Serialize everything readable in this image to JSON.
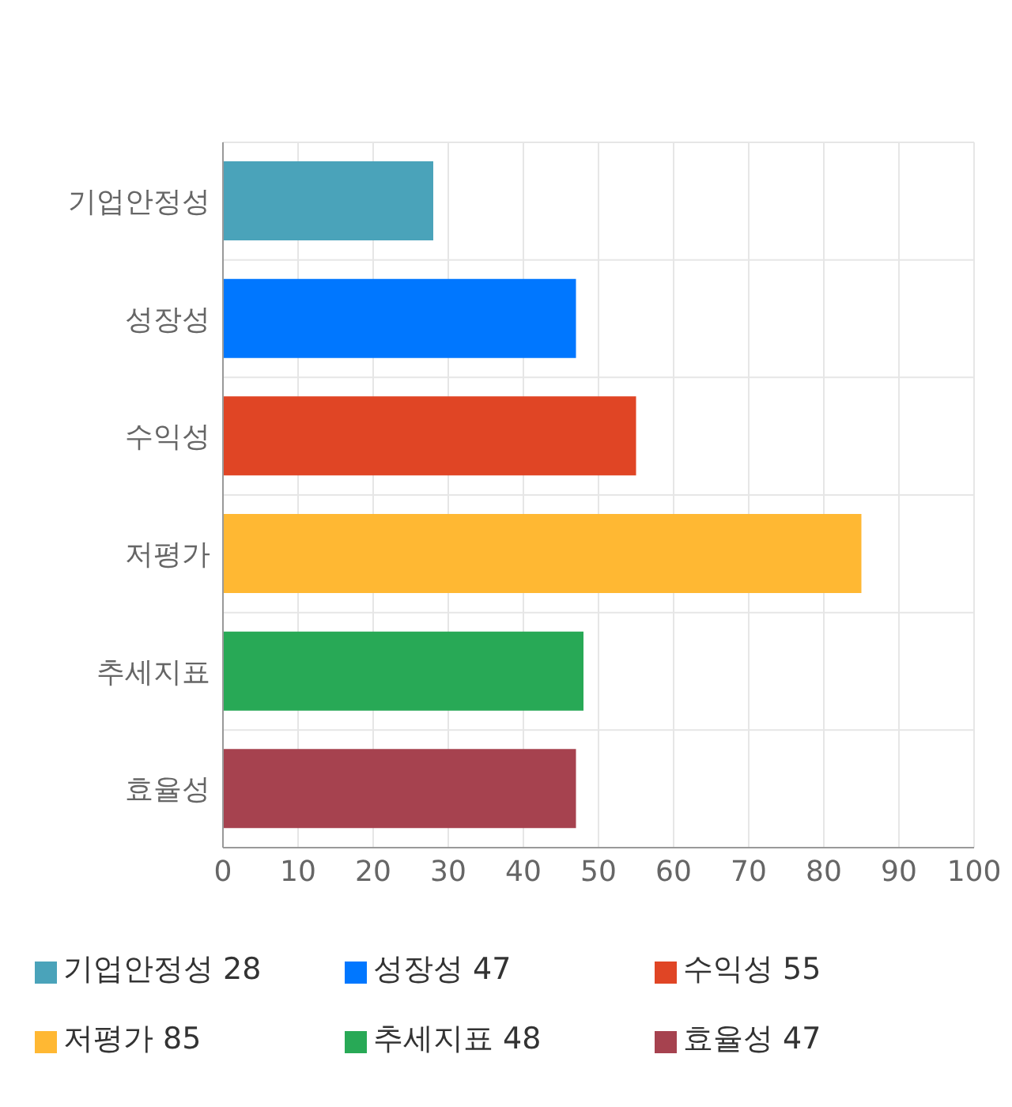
{
  "chart_data": {
    "type": "bar",
    "orientation": "horizontal",
    "stacked": true,
    "categories": [
      "기업안정성",
      "성장성",
      "수익성",
      "저평가",
      "추세지표",
      "효율성"
    ],
    "series": [
      {
        "name": "기업안정성 28",
        "color": "#4aa3ba",
        "values": [
          28,
          null,
          null,
          null,
          null,
          null
        ]
      },
      {
        "name": "성장성 47",
        "color": "#0077ff",
        "values": [
          null,
          47,
          null,
          null,
          null,
          null
        ]
      },
      {
        "name": "수익성 55",
        "color": "#e04525",
        "values": [
          null,
          null,
          55,
          null,
          null,
          null
        ]
      },
      {
        "name": "저평가 85",
        "color": "#ffb833",
        "values": [
          null,
          null,
          null,
          85,
          null,
          null
        ]
      },
      {
        "name": "추세지표 48",
        "color": "#28a956",
        "values": [
          null,
          null,
          null,
          null,
          48,
          null
        ]
      },
      {
        "name": "효율성 47",
        "color": "#a6424f",
        "values": [
          null,
          null,
          null,
          null,
          null,
          47
        ]
      }
    ],
    "xlim": [
      0,
      100
    ],
    "xticks": [
      0,
      10,
      20,
      30,
      40,
      50,
      60,
      70,
      80,
      90,
      100
    ],
    "grid": true,
    "legend": "bottom"
  }
}
